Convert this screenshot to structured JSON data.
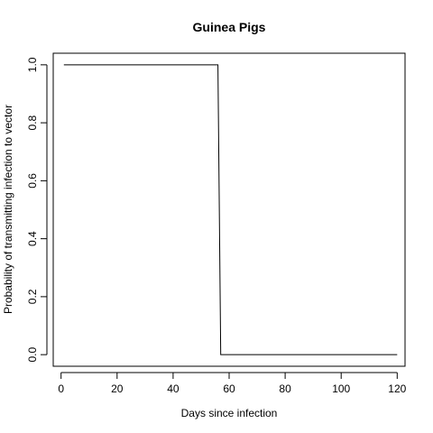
{
  "chart_data": {
    "type": "line",
    "title": "Guinea Pigs",
    "xlabel": "Days since infection",
    "ylabel": "Probability of transmitting infection to vector",
    "xlim": [
      -2.8,
      122.8
    ],
    "ylim": [
      -0.04,
      1.04
    ],
    "grid": false,
    "x_ticks": [
      0,
      20,
      40,
      60,
      80,
      100,
      120
    ],
    "y_ticks": [
      0.0,
      0.2,
      0.4,
      0.6,
      0.8,
      1.0
    ],
    "x_tick_labels": [
      "0",
      "20",
      "40",
      "60",
      "80",
      "100",
      "120"
    ],
    "y_tick_labels": [
      "0.0",
      "0.2",
      "0.4",
      "0.6",
      "0.8",
      "1.0"
    ],
    "series": [
      {
        "color": "#000000",
        "x": [
          1,
          56,
          57,
          120
        ],
        "y": [
          1.0,
          1.0,
          0.0,
          0.0
        ]
      }
    ]
  }
}
